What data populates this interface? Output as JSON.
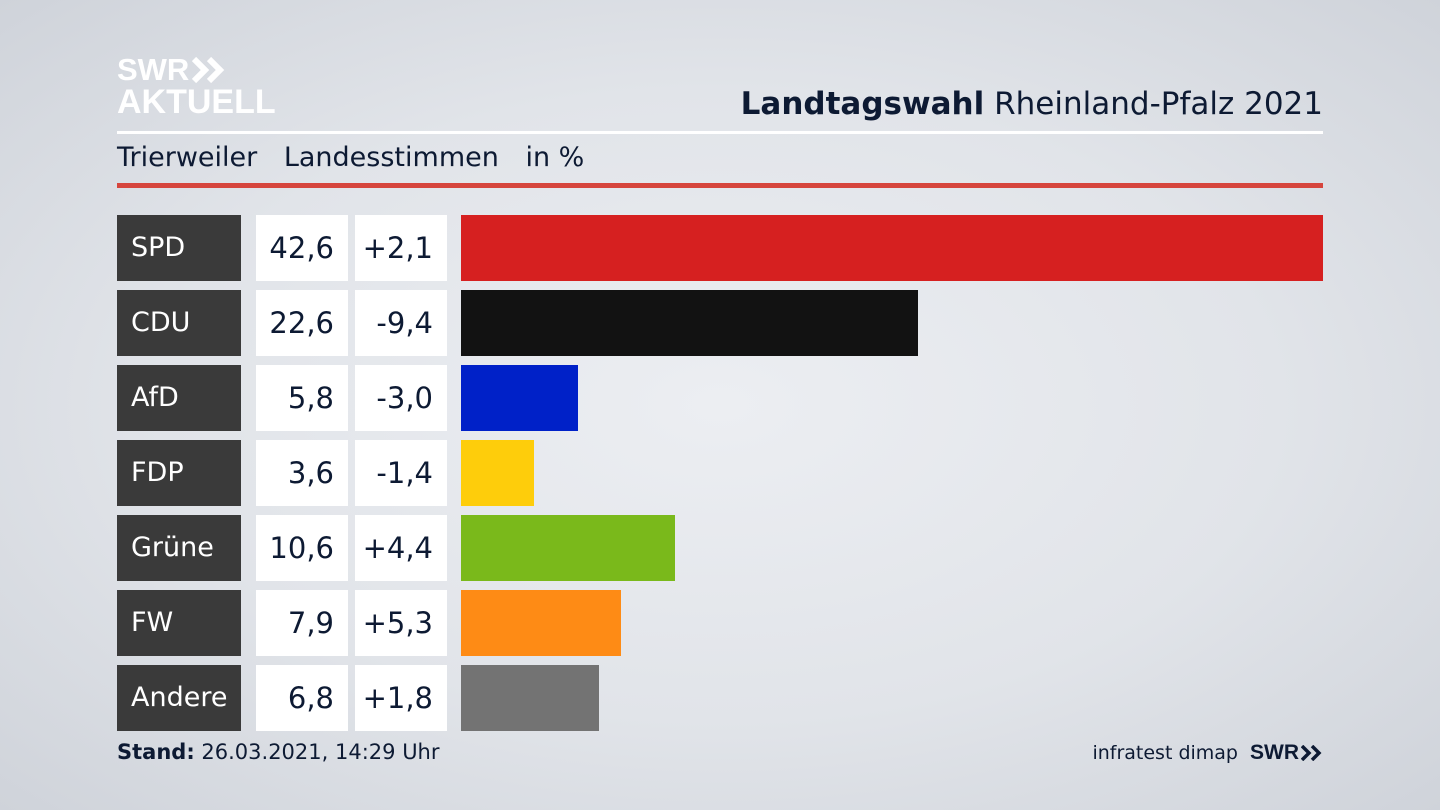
{
  "brand": {
    "logo_line1": "SWR",
    "logo_line2": "AKTUELL",
    "color": "#ffffff"
  },
  "header": {
    "title_bold": "Landtagswahl",
    "title_rest": "Rheinland-Pfalz 2021"
  },
  "subtitle": {
    "place": "Trierweiler",
    "kind": "Landesstimmen",
    "unit": "in %"
  },
  "accent_color": "#d6453d",
  "chart_data": {
    "type": "bar",
    "orientation": "horizontal",
    "categories": [
      "SPD",
      "CDU",
      "AfD",
      "FDP",
      "Grüne",
      "FW",
      "Andere"
    ],
    "values": [
      42.6,
      22.6,
      5.8,
      3.6,
      10.6,
      7.9,
      6.8
    ],
    "value_labels": [
      "42,6",
      "22,6",
      "5,8",
      "3,6",
      "10,6",
      "7,9",
      "6,8"
    ],
    "diff_labels": [
      "+2,1",
      "-9,4",
      "-3,0",
      "-1,4",
      "+4,4",
      "+5,3",
      "+1,8"
    ],
    "colors": [
      "#d62020",
      "#121212",
      "#0021c8",
      "#fecd0b",
      "#7ab91b",
      "#fe8b15",
      "#737373"
    ],
    "xlim": [
      0,
      42.6
    ],
    "grid": false,
    "legend": "none"
  },
  "footer": {
    "stand_label": "Stand:",
    "stand_value": "26.03.2021, 14:29 Uhr",
    "source": "infratest dimap",
    "logo": "SWR"
  }
}
